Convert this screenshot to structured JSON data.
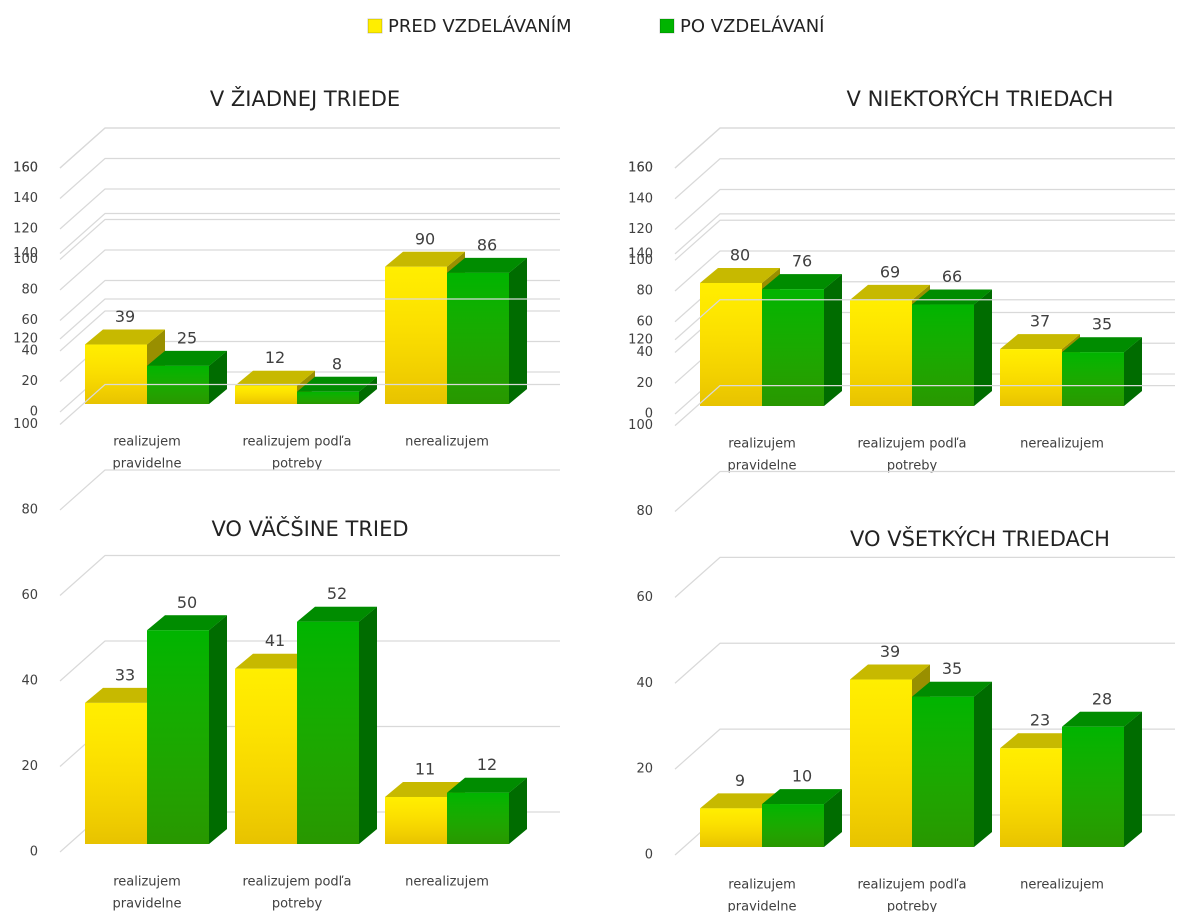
{
  "legend": [
    {
      "name": "PRED VZDELÁVANÍM",
      "color": "#ffee00"
    },
    {
      "name": "PO VZDELÁVANÍ",
      "color": "#00b400"
    }
  ],
  "chart_data": [
    {
      "type": "bar",
      "title": "V ŽIADNEJ TRIEDE",
      "categories": [
        [
          "realizujem",
          "pravidelne"
        ],
        [
          "realizujem podľa",
          "potreby"
        ],
        [
          "nerealizujem"
        ]
      ],
      "series": [
        {
          "values": [
            39,
            12,
            90
          ]
        },
        {
          "values": [
            25,
            8,
            86
          ]
        }
      ],
      "ylim": [
        0,
        160
      ],
      "yticks": [
        0,
        20,
        40,
        60,
        80,
        100,
        120,
        140,
        160
      ],
      "grid": true
    },
    {
      "type": "bar",
      "title": "V NIEKTORÝCH TRIEDACH",
      "categories": [
        [
          "realizujem",
          "pravidelne"
        ],
        [
          "realizujem podľa",
          "potreby"
        ],
        [
          "nerealizujem"
        ]
      ],
      "series": [
        {
          "values": [
            80,
            69,
            37
          ]
        },
        {
          "values": [
            76,
            66,
            35
          ]
        }
      ],
      "ylim": [
        0,
        160
      ],
      "yticks": [
        0,
        20,
        40,
        60,
        80,
        100,
        120,
        140,
        160
      ],
      "grid": true
    },
    {
      "type": "bar",
      "title": "VO VÄČŠINE TRIED",
      "categories": [
        [
          "realizujem",
          "pravidelne"
        ],
        [
          "realizujem podľa",
          "potreby"
        ],
        [
          "nerealizujem"
        ]
      ],
      "series": [
        {
          "values": [
            33,
            41,
            11
          ]
        },
        {
          "values": [
            50,
            52,
            12
          ]
        }
      ],
      "ylim": [
        0,
        160
      ],
      "yticks": [
        0,
        20,
        40,
        60,
        80,
        100,
        120,
        140,
        160
      ],
      "grid": true
    },
    {
      "type": "bar",
      "title": "VO VŠETKÝCH TRIEDACH",
      "categories": [
        [
          "realizujem",
          "pravidelne"
        ],
        [
          "realizujem podľa",
          "potreby"
        ],
        [
          "nerealizujem"
        ]
      ],
      "series": [
        {
          "values": [
            9,
            39,
            23
          ]
        },
        {
          "values": [
            10,
            35,
            28
          ]
        }
      ],
      "ylim": [
        0,
        160
      ],
      "yticks": [
        0,
        20,
        40,
        60,
        80,
        100,
        120,
        140,
        160
      ],
      "grid": true
    }
  ]
}
